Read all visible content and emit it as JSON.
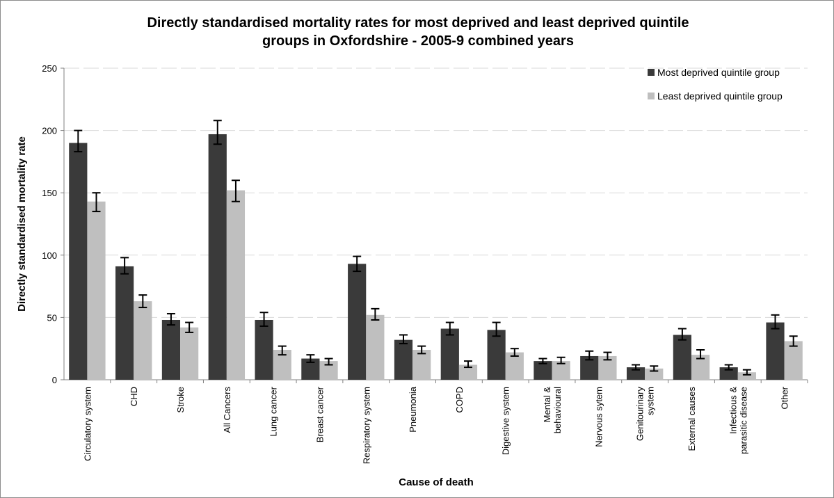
{
  "chart_data": {
    "type": "bar",
    "title_lines": [
      "Directly standardised mortality rates for most deprived and least deprived quintile",
      "groups in Oxfordshire - 2005-9 combined years"
    ],
    "xlabel": "Cause of death",
    "ylabel": "Directly standardised mortality rate",
    "ylim": [
      0,
      250
    ],
    "yticks": [
      "0",
      "50",
      "100",
      "150",
      "200",
      "250"
    ],
    "grid": true,
    "legend_position": "top-right",
    "categories": [
      [
        "Circulatory system"
      ],
      [
        "CHD"
      ],
      [
        "Stroke"
      ],
      [
        "All Cancers"
      ],
      [
        "Lung cancer"
      ],
      [
        "Breast cancer"
      ],
      [
        "Respiratory system"
      ],
      [
        "Pneumonia"
      ],
      [
        "COPD"
      ],
      [
        "Digestive system"
      ],
      [
        "Mental &",
        "behavioural"
      ],
      [
        "Nervous sytem"
      ],
      [
        "Genitourinary",
        "system"
      ],
      [
        "External causes"
      ],
      [
        "Infectious &",
        "parasitic disease"
      ],
      [
        "Other"
      ]
    ],
    "series": [
      {
        "name": "Most deprived quintile group",
        "color": "#3a3a3a",
        "values": [
          190,
          91,
          48,
          197,
          48,
          17,
          93,
          32,
          41,
          40,
          15,
          19,
          10,
          36,
          10,
          46
        ],
        "error_low": [
          183,
          85,
          44,
          189,
          43,
          14,
          87,
          29,
          36,
          35,
          13,
          16,
          8,
          32,
          8,
          41
        ],
        "error_high": [
          200,
          98,
          53,
          208,
          54,
          20,
          99,
          36,
          46,
          46,
          17,
          23,
          12,
          41,
          12,
          52
        ]
      },
      {
        "name": "Least deprived quintile group",
        "color": "#bfbfbf",
        "values": [
          143,
          63,
          42,
          152,
          24,
          15,
          52,
          24,
          12,
          22,
          15,
          19,
          9,
          20,
          6,
          31
        ],
        "error_low": [
          135,
          58,
          38,
          143,
          20,
          12,
          48,
          21,
          10,
          19,
          13,
          16,
          7,
          17,
          4,
          27
        ],
        "error_high": [
          150,
          68,
          46,
          160,
          27,
          17,
          57,
          27,
          15,
          25,
          18,
          22,
          11,
          24,
          8,
          35
        ]
      }
    ]
  }
}
